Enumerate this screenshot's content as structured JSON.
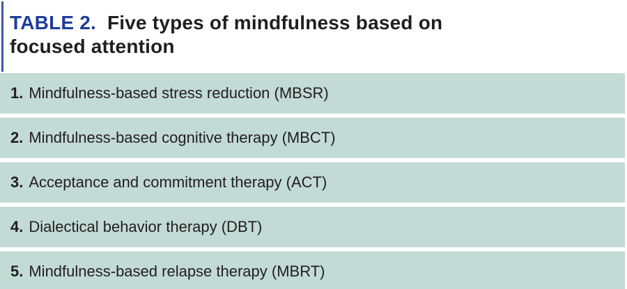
{
  "header": {
    "label": "TABLE 2.",
    "title_line1": "Five types of mindfulness based on",
    "title_line2": "focused attention"
  },
  "rows": [
    {
      "num": "1.",
      "text": "Mindfulness-based stress reduction (MBSR)"
    },
    {
      "num": "2.",
      "text": "Mindfulness-based cognitive therapy (MBCT)"
    },
    {
      "num": "3.",
      "text": "Acceptance and commitment therapy (ACT)"
    },
    {
      "num": "4.",
      "text": "Dialectical behavior therapy (DBT)"
    },
    {
      "num": "5.",
      "text": "Mindfulness-based relapse therapy (MBRT)"
    }
  ],
  "colors": {
    "accent_blue_rule": "#3d57a8",
    "label_blue": "#1e3d9a",
    "row_background": "#c2dbd4",
    "text_dark": "#221e1f",
    "gap_white": "#ffffff"
  }
}
